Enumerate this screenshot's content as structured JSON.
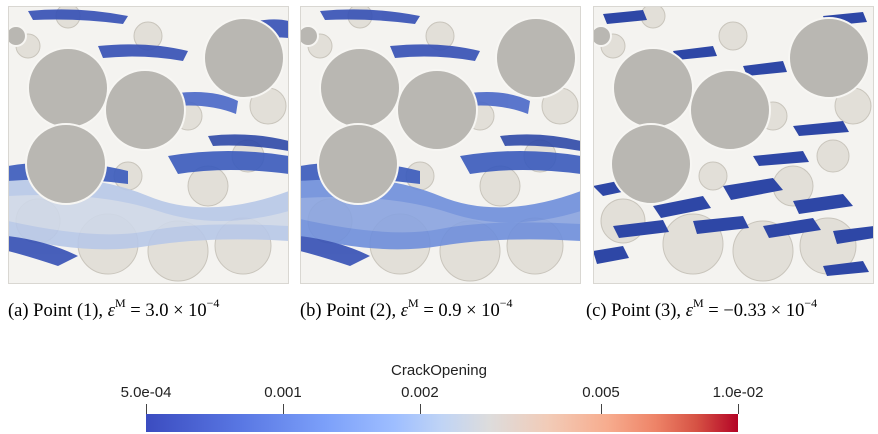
{
  "panels": [
    {
      "id": "a",
      "label": "(a)",
      "point": "Point (1),",
      "eps": "ε",
      "sup": "M",
      "relation": " = ",
      "mantissa": "3.0",
      "times": " × ",
      "base": "10",
      "exponent": "−4"
    },
    {
      "id": "b",
      "label": "(b)",
      "point": "Point (2),",
      "eps": "ε",
      "sup": "M",
      "relation": " = ",
      "mantissa": "0.9",
      "times": " × ",
      "base": "10",
      "exponent": "−4"
    },
    {
      "id": "c",
      "label": "(c)",
      "point": "Point (3),",
      "eps": "ε",
      "sup": "M",
      "relation": " = ",
      "mantissa": "−0.33",
      "times": " × ",
      "base": "10",
      "exponent": "−4"
    }
  ],
  "colorbar": {
    "title": "CrackOpening",
    "scale": "log",
    "range": [
      0.0005,
      0.01
    ],
    "ticks": [
      {
        "value": 0.0005,
        "label": "5.0e-04"
      },
      {
        "value": 0.001,
        "label": "0.001"
      },
      {
        "value": 0.002,
        "label": "0.002"
      },
      {
        "value": 0.005,
        "label": "0.005"
      },
      {
        "value": 0.01,
        "label": "1.0e-02"
      }
    ],
    "colors": {
      "low": "#3b4cc0",
      "mid": "#dddcdc",
      "high": "#b40426"
    }
  },
  "colors": {
    "inclusion": "#b9b7b2",
    "aggregate": "#e4e1da",
    "crack_dark": "#3550b5",
    "crack_mid": "#6f8fdc",
    "crack_light": "#b8c8e8"
  }
}
